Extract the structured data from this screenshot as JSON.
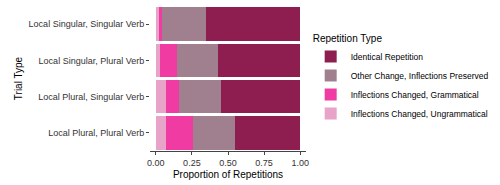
{
  "chart_data": {
    "type": "bar",
    "orientation": "horizontal",
    "stacked": true,
    "x_label": "Proportion of Repetitions",
    "y_label": "Trial Type",
    "legend_title": "Repetition Type",
    "legend": "right",
    "grid": false,
    "categories": [
      "Local Singular, Singular Verb",
      "Local Singular, Plural Verb",
      "Local Plural, Singular Verb",
      "Local Plural, Plural Verb"
    ],
    "series": [
      {
        "name": "Inflections Changed, Ungrammatical",
        "color": "#e8a3c8",
        "values": [
          0.02,
          0.03,
          0.07,
          0.07
        ]
      },
      {
        "name": "Inflections Changed, Grammatical",
        "color": "#f03ca2",
        "values": [
          0.02,
          0.12,
          0.09,
          0.19
        ]
      },
      {
        "name": "Other Change, Inflections Preserved",
        "color": "#a0808e",
        "values": [
          0.31,
          0.28,
          0.29,
          0.29
        ]
      },
      {
        "name": "Identical Repetition",
        "color": "#8e1e50",
        "values": [
          0.65,
          0.57,
          0.55,
          0.45
        ]
      }
    ],
    "xlim": [
      -0.04,
      1.04
    ],
    "xticks": [
      {
        "value": 0,
        "label": "0.00"
      },
      {
        "value": 0.25,
        "label": "0.25"
      },
      {
        "value": 0.5,
        "label": "0.50"
      },
      {
        "value": 0.75,
        "label": "0.75"
      },
      {
        "value": 1,
        "label": "1.00"
      }
    ]
  }
}
